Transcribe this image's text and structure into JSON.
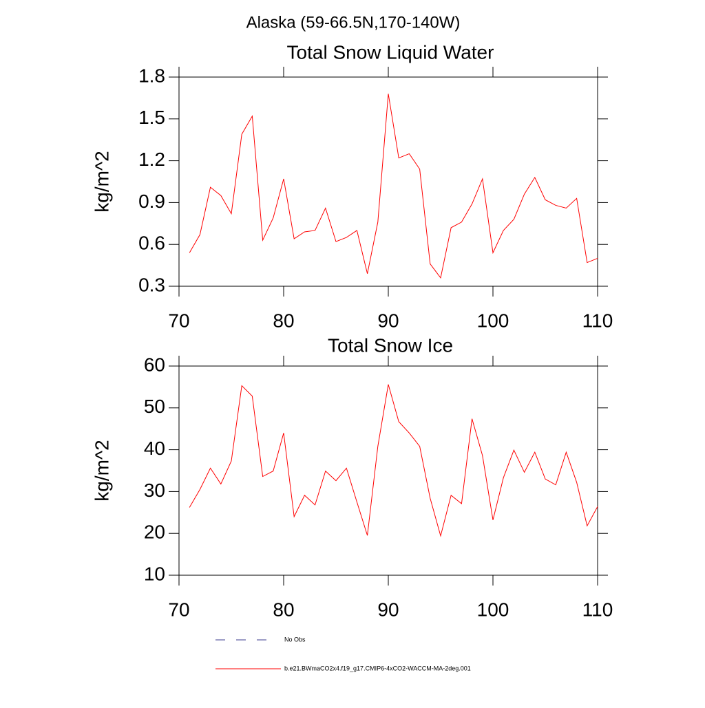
{
  "title": "Alaska (59-66.5N,170-140W)",
  "legend": [
    "No Obs"
  ],
  "chart_data": [
    {
      "type": "line",
      "title": "Total Snow Liquid Water",
      "y_label": "kg/m^2",
      "x": [
        71,
        72,
        73,
        74,
        75,
        76,
        77,
        78,
        79,
        80,
        81,
        82,
        83,
        84,
        85,
        86,
        87,
        88,
        89,
        90,
        91,
        92,
        93,
        94,
        95,
        96,
        97,
        98,
        99,
        100,
        101,
        102,
        103,
        104,
        105,
        106,
        107,
        108,
        109,
        110
      ],
      "series": [
        {
          "name": "b.e21.BWmaCO2x4.f19_g17.CMIP6-4xCO2-WACCM-MA-2deg.001",
          "color": "#ff0000",
          "values": [
            0.54,
            0.67,
            1.01,
            0.95,
            0.82,
            1.39,
            1.52,
            0.63,
            0.79,
            1.07,
            0.64,
            0.69,
            0.7,
            0.86,
            0.62,
            0.65,
            0.7,
            0.39,
            0.76,
            1.68,
            1.22,
            1.25,
            1.14,
            0.46,
            0.36,
            0.72,
            0.76,
            0.89,
            1.07,
            0.54,
            0.7,
            0.78,
            0.96,
            1.08,
            0.92,
            0.88,
            0.86,
            0.93,
            0.47,
            0.5
          ]
        }
      ],
      "xlim": [
        70,
        110
      ],
      "xticks": [
        70,
        80,
        90,
        100,
        110
      ],
      "ylim": [
        0.3,
        1.8
      ],
      "yticks": [
        0.3,
        0.6,
        0.9,
        1.2,
        1.5,
        1.8
      ]
    },
    {
      "type": "line",
      "title": "Total Snow Ice",
      "y_label": "kg/m^2",
      "x": [
        71,
        72,
        73,
        74,
        75,
        76,
        77,
        78,
        79,
        80,
        81,
        82,
        83,
        84,
        85,
        86,
        87,
        88,
        89,
        90,
        91,
        92,
        93,
        94,
        95,
        96,
        97,
        98,
        99,
        100,
        101,
        102,
        103,
        104,
        105,
        106,
        107,
        108,
        109,
        110
      ],
      "series": [
        {
          "name": "b.e21.BWmaCO2x4.f19_g17.CMIP6-4xCO2-WACCM-MA-2deg.001",
          "color": "#ff0000",
          "values": [
            26.2,
            30.5,
            35.6,
            31.8,
            37.3,
            55.3,
            52.8,
            33.6,
            34.9,
            44.0,
            24.0,
            29.1,
            26.8,
            34.9,
            32.6,
            35.6,
            27.5,
            19.5,
            40.8,
            55.6,
            46.7,
            44.0,
            40.8,
            28.4,
            19.4,
            29.1,
            27.1,
            47.4,
            38.6,
            23.2,
            33.3,
            39.9,
            34.6,
            39.4,
            33.0,
            31.6,
            39.4,
            32.2,
            21.8,
            26.4
          ]
        }
      ],
      "xlim": [
        70,
        110
      ],
      "xticks": [
        70,
        80,
        90,
        100,
        110
      ],
      "ylim": [
        10,
        60
      ],
      "yticks": [
        10,
        20,
        30,
        40,
        50,
        60
      ]
    }
  ]
}
